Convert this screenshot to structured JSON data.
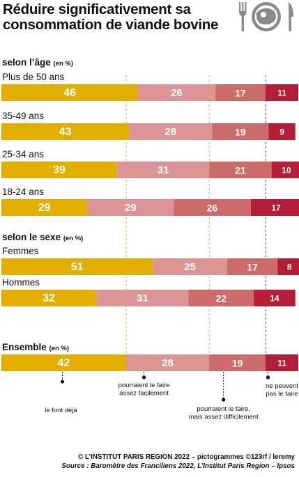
{
  "title": "Réduire significativement sa consommation de viande bovine",
  "icon": "cutlery-steak-icon",
  "colors": {
    "le_font_deja": "#e4ae00",
    "facilement": "#dd9494",
    "difficilement": "#cd6a6a",
    "ne_peuvent_pas": "#b31d35",
    "dashed_yellow": "#e4ae00",
    "dashed_pink": "#dd9494",
    "dashed_red": "#b31d35"
  },
  "chart_data": {
    "type": "bar",
    "stacked": true,
    "orientation": "horizontal",
    "unit": "%",
    "sections": [
      {
        "label": "selon l’âge",
        "unit": "(en %)",
        "categories": [
          "Plus de 50 ans",
          "35-49 ans",
          "25-34 ans",
          "18-24 ans"
        ],
        "series": [
          {
            "values": [
              46,
              43,
              39,
              29
            ]
          },
          {
            "values": [
              26,
              28,
              31,
              29
            ]
          },
          {
            "values": [
              17,
              19,
              21,
              26
            ]
          },
          {
            "values": [
              11,
              9,
              10,
              17
            ]
          }
        ]
      },
      {
        "label": "selon le sexe",
        "unit": "(en %)",
        "categories": [
          "Femmes",
          "Hommes"
        ],
        "series": [
          {
            "values": [
              51,
              32
            ]
          },
          {
            "values": [
              25,
              31
            ]
          },
          {
            "values": [
              17,
              22
            ]
          },
          {
            "values": [
              8,
              14
            ]
          }
        ]
      },
      {
        "label": "Ensemble",
        "unit": "(en %)",
        "categories": [
          ""
        ],
        "series": [
          {
            "values": [
              42
            ]
          },
          {
            "values": [
              28
            ]
          },
          {
            "values": [
              19
            ]
          },
          {
            "values": [
              11
            ]
          }
        ]
      }
    ],
    "legend_callouts": [
      {
        "lines": [
          "le font déjà"
        ]
      },
      {
        "lines": [
          "pourraient le faire",
          "assez facilement"
        ]
      },
      {
        "lines": [
          "pourraient le faire,",
          "mais assez difficilement"
        ]
      },
      {
        "lines": [
          "ne peuvent",
          "pas le faire"
        ]
      }
    ]
  },
  "footer": {
    "credit": "© L’INSTITUT PARIS REGION 2022 – pictogrammes ©123rf / leremy",
    "source": "Source : Baromètre des Franciliens 2022, L’Institut Paris Region – Ipsos"
  }
}
